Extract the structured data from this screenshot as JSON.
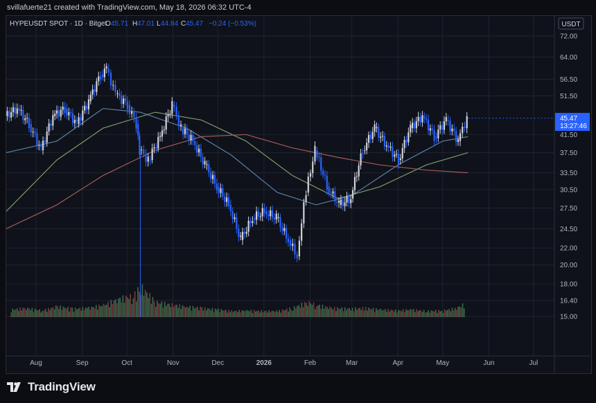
{
  "header": {
    "caption": "svillafuerte21 created with TradingView.com, May 18, 2026 06:32 UTC-4"
  },
  "legend": {
    "symbol": "HYPEUSDT SPOT · 1D · Bitget",
    "open_label": "O",
    "open": "45.71",
    "high_label": "H",
    "high": "47.01",
    "low_label": "L",
    "low": "44.84",
    "close_label": "C",
    "close": "45.47",
    "change": "−0.24 (−0.53%)"
  },
  "price_scale": {
    "currency": "USDT",
    "last_price": "45.47",
    "countdown": "13:27:46"
  },
  "footer": {
    "brand": "TradingView"
  },
  "colors": {
    "up": "#d1d4dc",
    "down": "#2962ff",
    "ma_blue": "#5b7fa8",
    "ma_green": "#7a9a6e",
    "ma_red": "#a35a5a",
    "vol_up": "#3f6b4a",
    "vol_down": "#7a3a40",
    "grid": "#1f2430",
    "legend_value": "#2962ff"
  },
  "chart_data": {
    "type": "line",
    "title": "",
    "xlabel": "",
    "ylabel": "",
    "y_axis_ticks": [
      "72.00",
      "64.00",
      "56.50",
      "51.50",
      "45.47",
      "41.50",
      "37.50",
      "33.50",
      "30.50",
      "27.50",
      "24.50",
      "22.00",
      "20.00",
      "18.00",
      "16.40",
      "15.00"
    ],
    "x_axis_ticks": [
      "Aug",
      "Sep",
      "Oct",
      "Nov",
      "Dec",
      "2026",
      "Feb",
      "Mar",
      "Apr",
      "May",
      "Jun",
      "Jul"
    ],
    "scale": "log",
    "ylim": [
      15,
      72
    ],
    "x_range": [
      "2025-07-12",
      "2026-07-15"
    ],
    "grid": true,
    "price_series": {
      "name": "",
      "x": [
        "2025-07-12",
        "2025-07-20",
        "2025-07-28",
        "2025-08-05",
        "2025-08-13",
        "2025-08-21",
        "2025-08-29",
        "2025-09-06",
        "2025-09-14",
        "2025-09-18",
        "2025-09-24",
        "2025-10-02",
        "2025-10-08",
        "2025-10-10",
        "2025-10-16",
        "2025-10-24",
        "2025-11-01",
        "2025-11-07",
        "2025-11-15",
        "2025-11-23",
        "2025-12-01",
        "2025-12-09",
        "2025-12-17",
        "2025-12-25",
        "2026-01-02",
        "2026-01-10",
        "2026-01-18",
        "2026-01-24",
        "2026-01-30",
        "2026-02-05",
        "2026-02-13",
        "2026-02-21",
        "2026-03-01",
        "2026-03-09",
        "2026-03-17",
        "2026-03-25",
        "2026-04-02",
        "2026-04-10",
        "2026-04-18",
        "2026-04-26",
        "2026-05-04",
        "2026-05-12",
        "2026-05-18"
      ],
      "close": [
        46,
        48,
        44,
        38,
        46,
        48,
        44,
        50,
        58,
        60,
        52,
        49,
        44,
        38,
        36,
        41,
        49,
        43,
        40,
        35,
        31,
        28,
        23,
        26,
        27,
        26,
        23,
        21,
        30,
        38,
        31,
        28,
        29,
        38,
        43,
        39,
        36,
        43,
        46,
        41,
        45,
        40,
        45.47
      ]
    },
    "ma_series": [
      {
        "name": "",
        "color": "ma_blue",
        "x": [
          "2025-07-12",
          "2025-08-15",
          "2025-09-15",
          "2025-10-10",
          "2025-11-10",
          "2025-12-10",
          "2026-01-10",
          "2026-02-05",
          "2026-03-01",
          "2026-04-01",
          "2026-05-01",
          "2026-05-18"
        ],
        "values": [
          37.5,
          40,
          48,
          47,
          43,
          37,
          30,
          28,
          29.5,
          35,
          40,
          41
        ]
      },
      {
        "name": "",
        "color": "ma_green",
        "x": [
          "2025-07-12",
          "2025-08-15",
          "2025-09-15",
          "2025-10-20",
          "2025-11-20",
          "2025-12-20",
          "2026-01-20",
          "2026-02-20",
          "2026-03-20",
          "2026-04-20",
          "2026-05-18"
        ],
        "values": [
          27,
          36,
          43,
          47,
          45,
          40,
          33,
          29,
          31,
          35,
          37.5
        ]
      },
      {
        "name": "",
        "color": "ma_red",
        "x": [
          "2025-07-12",
          "2025-08-15",
          "2025-09-15",
          "2025-10-20",
          "2025-11-20",
          "2025-12-20",
          "2026-01-20",
          "2026-02-20",
          "2026-03-20",
          "2026-04-20",
          "2026-05-18"
        ],
        "values": [
          24.5,
          28,
          33,
          38,
          41,
          41.5,
          38.5,
          36.5,
          35,
          34,
          33.5
        ]
      }
    ],
    "volume_series": {
      "name": "",
      "x": [
        "2025-07-15",
        "2025-07-25",
        "2025-08-05",
        "2025-08-15",
        "2025-08-25",
        "2025-09-05",
        "2025-09-15",
        "2025-09-25",
        "2025-10-05",
        "2025-10-10",
        "2025-10-20",
        "2025-11-01",
        "2025-11-10",
        "2025-11-20",
        "2025-12-01",
        "2025-12-10",
        "2025-12-20",
        "2026-01-01",
        "2026-01-10",
        "2026-01-20",
        "2026-01-30",
        "2026-02-05",
        "2026-02-15",
        "2026-03-01",
        "2026-03-10",
        "2026-03-20",
        "2026-04-01",
        "2026-04-10",
        "2026-04-20",
        "2026-05-01",
        "2026-05-10",
        "2026-05-16"
      ],
      "relative": [
        0.25,
        0.3,
        0.22,
        0.35,
        0.28,
        0.3,
        0.4,
        0.6,
        0.7,
        1.0,
        0.5,
        0.4,
        0.35,
        0.3,
        0.25,
        0.2,
        0.22,
        0.2,
        0.2,
        0.3,
        0.5,
        0.4,
        0.3,
        0.28,
        0.3,
        0.25,
        0.22,
        0.25,
        0.2,
        0.22,
        0.3,
        0.45
      ]
    }
  }
}
